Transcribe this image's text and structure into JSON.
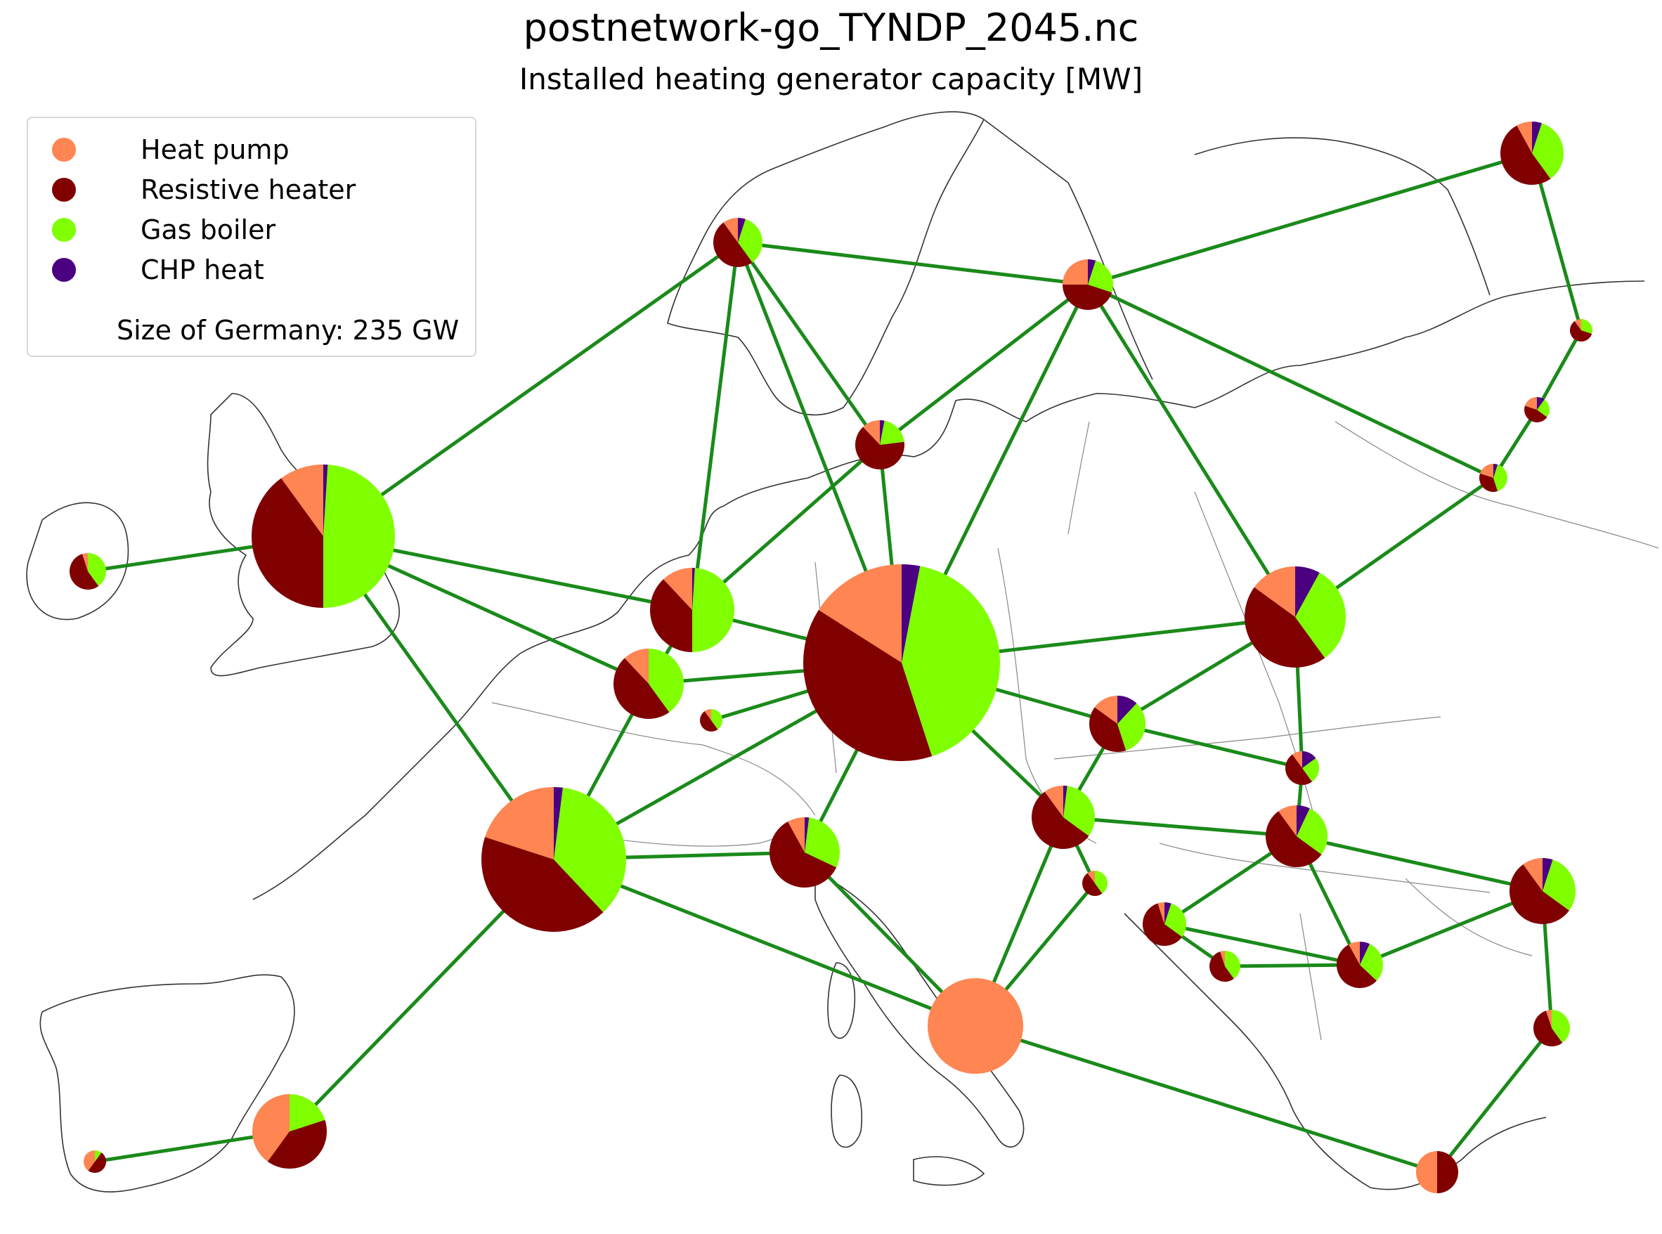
{
  "title": "postnetwork-go_TYNDP_2045.nc",
  "subtitle": "Installed heating generator capacity [MW]",
  "legend": {
    "items": [
      {
        "label": "Heat pump",
        "color": "#ff8552"
      },
      {
        "label": "Resistive heater",
        "color": "#800000"
      },
      {
        "label": "Gas boiler",
        "color": "#80ff00"
      },
      {
        "label": "CHP heat",
        "color": "#4b0082"
      }
    ],
    "size_note": "Size of Germany: 235 GW"
  },
  "colors": {
    "line": "#1a8a1a",
    "coast": "#333333",
    "border": "#888888"
  }
}
